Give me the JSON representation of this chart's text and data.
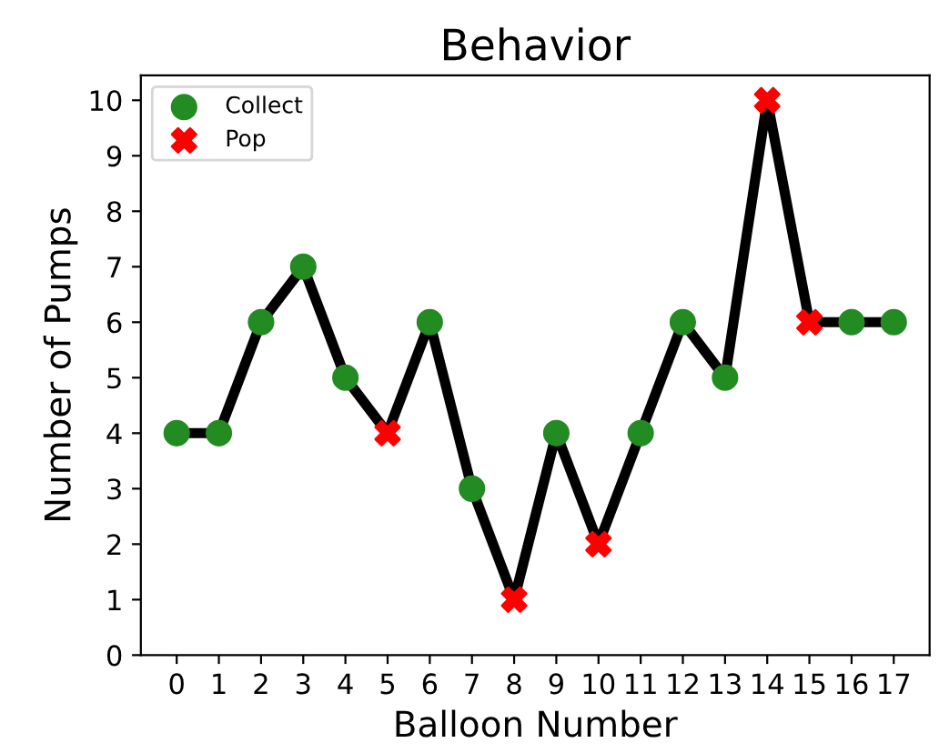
{
  "chart_data": {
    "type": "line",
    "title": "Behavior",
    "xlabel": "Balloon Number",
    "ylabel": "Number of Pumps",
    "x": [
      0,
      1,
      2,
      3,
      4,
      5,
      6,
      7,
      8,
      9,
      10,
      11,
      12,
      13,
      14,
      15,
      16,
      17
    ],
    "series": [
      {
        "color": "#000000",
        "marker": "none",
        "values": [
          4,
          4,
          6,
          7,
          5,
          4,
          6,
          3,
          1,
          4,
          2,
          4,
          6,
          5,
          10,
          6,
          6,
          6
        ]
      },
      {
        "type": "scatter",
        "name": "Collect",
        "color": "#228b22",
        "marker": "circle",
        "x": [
          0,
          1,
          2,
          3,
          4,
          6,
          7,
          9,
          11,
          12,
          13,
          16,
          17
        ],
        "values": [
          4,
          4,
          6,
          7,
          5,
          6,
          3,
          4,
          4,
          6,
          5,
          6,
          6
        ]
      },
      {
        "type": "scatter",
        "name": "Pop",
        "color": "#ff0000",
        "marker": "cross",
        "x": [
          5,
          8,
          10,
          14,
          15
        ],
        "values": [
          4,
          1,
          2,
          10,
          6
        ]
      }
    ],
    "xlim": [
      -0.85,
      17.85
    ],
    "xticks": [
      0,
      1,
      2,
      3,
      4,
      5,
      6,
      7,
      8,
      9,
      10,
      11,
      12,
      13,
      14,
      15,
      16,
      17
    ],
    "ylim": [
      0,
      10.45
    ],
    "yticks": [
      0,
      1,
      2,
      3,
      4,
      5,
      6,
      7,
      8,
      9,
      10
    ],
    "grid": false,
    "legend": "top left"
  }
}
